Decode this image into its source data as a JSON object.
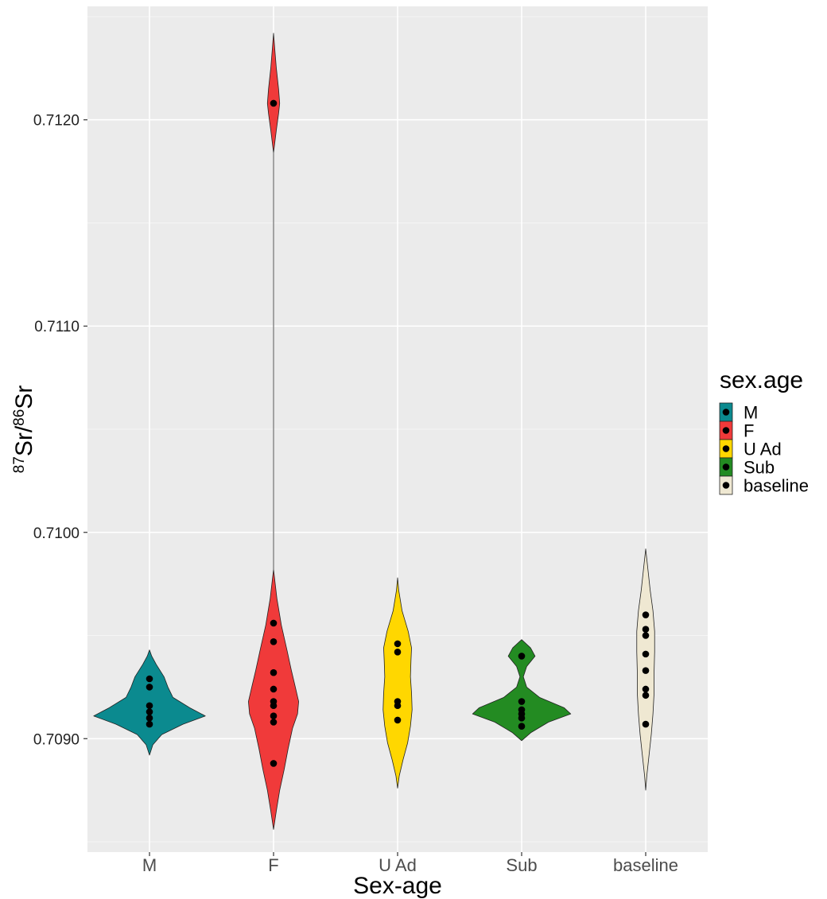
{
  "chart_data": {
    "type": "violin",
    "xlabel": "Sex-age",
    "ylabel_parts": {
      "sup1": "87",
      "base1": "Sr/",
      "sup2": "86",
      "base2": "Sr"
    },
    "ylim": [
      0.70845,
      0.71255
    ],
    "y_ticks": [
      0.709,
      0.71,
      0.711,
      0.712
    ],
    "y_tick_labels": [
      "0.7090",
      "0.7100",
      "0.7110",
      "0.7120"
    ],
    "grid": true,
    "legend": {
      "title": "sex.age",
      "position": "right"
    },
    "categories": [
      "M",
      "F",
      "U Ad",
      "Sub",
      "baseline"
    ],
    "groups": [
      {
        "name": "M",
        "color": "#0b8a8f",
        "points": [
          0.70929,
          0.70925,
          0.70916,
          0.70913,
          0.7091,
          0.70907
        ],
        "density": [
          [
            0.70892,
            0.0
          ],
          [
            0.70897,
            0.06
          ],
          [
            0.70902,
            0.22
          ],
          [
            0.70907,
            0.6
          ],
          [
            0.70911,
            1.0
          ],
          [
            0.70915,
            0.72
          ],
          [
            0.7092,
            0.42
          ],
          [
            0.70925,
            0.33
          ],
          [
            0.7093,
            0.26
          ],
          [
            0.70936,
            0.12
          ],
          [
            0.7094,
            0.04
          ],
          [
            0.70943,
            0.0
          ]
        ]
      },
      {
        "name": "F",
        "color": "#f03a3a",
        "points": [
          0.71208,
          0.70956,
          0.70947,
          0.70932,
          0.70924,
          0.70918,
          0.70916,
          0.70911,
          0.70908,
          0.70888
        ],
        "density": [
          [
            0.70856,
            0.0
          ],
          [
            0.70865,
            0.05
          ],
          [
            0.70875,
            0.11
          ],
          [
            0.70885,
            0.19
          ],
          [
            0.70895,
            0.26
          ],
          [
            0.70905,
            0.34
          ],
          [
            0.70912,
            0.43
          ],
          [
            0.70918,
            0.45
          ],
          [
            0.70925,
            0.39
          ],
          [
            0.70933,
            0.32
          ],
          [
            0.70943,
            0.24
          ],
          [
            0.70955,
            0.14
          ],
          [
            0.70968,
            0.06
          ],
          [
            0.70982,
            0.0
          ],
          [
            0.71,
            0.0
          ],
          [
            0.71184,
            0.0
          ],
          [
            0.71195,
            0.05
          ],
          [
            0.71203,
            0.09
          ],
          [
            0.71208,
            0.11
          ],
          [
            0.71215,
            0.09
          ],
          [
            0.71225,
            0.05
          ],
          [
            0.71235,
            0.02
          ],
          [
            0.71242,
            0.0
          ]
        ]
      },
      {
        "name": "U Ad",
        "color": "#ffd700",
        "points": [
          0.70946,
          0.70942,
          0.70918,
          0.70916,
          0.70909
        ],
        "density": [
          [
            0.70876,
            0.0
          ],
          [
            0.70882,
            0.03
          ],
          [
            0.7089,
            0.1
          ],
          [
            0.70898,
            0.18
          ],
          [
            0.70906,
            0.23
          ],
          [
            0.70914,
            0.26
          ],
          [
            0.70922,
            0.25
          ],
          [
            0.7093,
            0.23
          ],
          [
            0.70938,
            0.24
          ],
          [
            0.70944,
            0.25
          ],
          [
            0.70952,
            0.19
          ],
          [
            0.70962,
            0.08
          ],
          [
            0.70972,
            0.02
          ],
          [
            0.70978,
            0.0
          ]
        ]
      },
      {
        "name": "Sub",
        "color": "#238b22",
        "points": [
          0.7094,
          0.70918,
          0.70914,
          0.70912,
          0.7091,
          0.70906
        ],
        "density": [
          [
            0.70899,
            0.0
          ],
          [
            0.70903,
            0.17
          ],
          [
            0.70908,
            0.48
          ],
          [
            0.70912,
            0.88
          ],
          [
            0.70915,
            0.76
          ],
          [
            0.7092,
            0.32
          ],
          [
            0.70925,
            0.09
          ],
          [
            0.7093,
            0.03
          ],
          [
            0.70935,
            0.09
          ],
          [
            0.7094,
            0.24
          ],
          [
            0.70944,
            0.16
          ],
          [
            0.70948,
            0.0
          ]
        ]
      },
      {
        "name": "baseline",
        "color": "#efe8d2",
        "points": [
          0.7096,
          0.70953,
          0.7095,
          0.70941,
          0.70933,
          0.70924,
          0.70921,
          0.70907
        ],
        "density": [
          [
            0.70875,
            0.0
          ],
          [
            0.70882,
            0.02
          ],
          [
            0.70892,
            0.06
          ],
          [
            0.70902,
            0.1
          ],
          [
            0.70912,
            0.13
          ],
          [
            0.70922,
            0.15
          ],
          [
            0.70932,
            0.15
          ],
          [
            0.70942,
            0.16
          ],
          [
            0.70952,
            0.16
          ],
          [
            0.70962,
            0.13
          ],
          [
            0.70972,
            0.08
          ],
          [
            0.70982,
            0.04
          ],
          [
            0.70992,
            0.0
          ]
        ]
      }
    ]
  }
}
